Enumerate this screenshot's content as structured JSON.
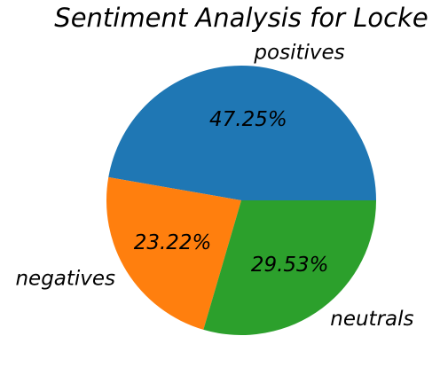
{
  "chart_data": {
    "type": "pie",
    "title": "Sentiment Analysis for Locke",
    "slices": [
      {
        "label": "positives",
        "value": 47.25,
        "pct_text": "47.25%",
        "color": "#1f77b4"
      },
      {
        "label": "negatives",
        "value": 23.22,
        "pct_text": "23.22%",
        "color": "#ff7f0e"
      },
      {
        "label": "neutrals",
        "value": 29.53,
        "pct_text": "29.53%",
        "color": "#2ca02c"
      }
    ],
    "start_angle_deg": 0,
    "direction": "counterclockwise"
  }
}
